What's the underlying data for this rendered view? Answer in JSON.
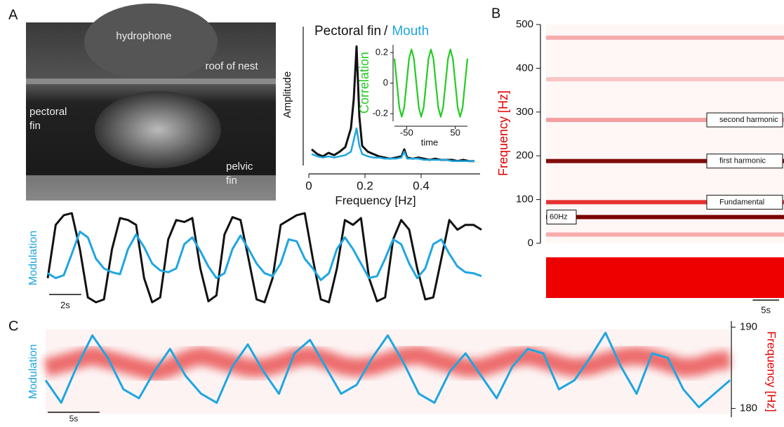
{
  "panel_labels": [
    "A",
    "B",
    "C"
  ],
  "photo": {
    "hydrophone": "hydrophone",
    "roof": "roof of nest",
    "pectoral": [
      "pectoral",
      "fin"
    ],
    "pelvic": [
      "pelvic",
      "fin"
    ]
  },
  "chart_data": [
    {
      "type": "line",
      "ylabel": "Amplitude",
      "xlabel": "Frequency [Hz]",
      "legend_separator": "/",
      "xlim": [
        0,
        0.6
      ],
      "xticks": [
        0,
        0.2,
        0.4
      ],
      "ylim": [
        0,
        1.05
      ],
      "x": [
        0.01,
        0.03,
        0.05,
        0.07,
        0.09,
        0.11,
        0.13,
        0.15,
        0.16,
        0.17,
        0.18,
        0.19,
        0.21,
        0.23,
        0.25,
        0.27,
        0.29,
        0.31,
        0.33,
        0.34,
        0.35,
        0.37,
        0.39,
        0.41,
        0.43,
        0.45,
        0.47,
        0.49,
        0.51,
        0.53,
        0.55,
        0.57,
        0.59
      ],
      "series": [
        {
          "name": "Pectoral fin",
          "color": "#111111",
          "values": [
            0.12,
            0.08,
            0.06,
            0.09,
            0.07,
            0.1,
            0.14,
            0.3,
            0.55,
            1.0,
            0.4,
            0.15,
            0.1,
            0.08,
            0.06,
            0.05,
            0.04,
            0.05,
            0.06,
            0.12,
            0.05,
            0.04,
            0.05,
            0.04,
            0.03,
            0.04,
            0.03,
            0.03,
            0.03,
            0.02,
            0.03,
            0.02,
            0.02
          ]
        },
        {
          "name": "Mouth",
          "color": "#1ea6e0",
          "values": [
            0.08,
            0.06,
            0.05,
            0.06,
            0.05,
            0.06,
            0.07,
            0.1,
            0.2,
            0.3,
            0.15,
            0.08,
            0.06,
            0.05,
            0.05,
            0.04,
            0.04,
            0.04,
            0.05,
            0.1,
            0.04,
            0.04,
            0.04,
            0.03,
            0.03,
            0.03,
            0.03,
            0.03,
            0.02,
            0.02,
            0.02,
            0.02,
            0.02
          ]
        }
      ]
    },
    {
      "type": "line",
      "ylabel": "Correlation",
      "xlabel": "time",
      "xlim": [
        -75,
        75
      ],
      "xticks": [
        -50,
        50
      ],
      "ylim": [
        -0.25,
        0.25
      ],
      "yticks": [
        -0.2,
        0,
        0.2
      ],
      "x": [
        -75,
        -70,
        -65,
        -60,
        -55,
        -50,
        -45,
        -40,
        -35,
        -30,
        -25,
        -20,
        -15,
        -10,
        -5,
        0,
        5,
        10,
        15,
        20,
        25,
        30,
        35,
        40,
        45,
        50,
        55,
        60,
        65,
        70,
        75
      ],
      "series": [
        {
          "color": "#22cc22",
          "values": [
            0.16,
            0,
            -0.16,
            -0.22,
            -0.16,
            0,
            0.16,
            0.22,
            0.16,
            0,
            -0.16,
            -0.22,
            -0.16,
            0,
            0.16,
            0.22,
            0.16,
            0,
            -0.16,
            -0.22,
            -0.16,
            0,
            0.16,
            0.22,
            0.16,
            0,
            -0.16,
            -0.22,
            -0.16,
            0,
            0.16
          ]
        }
      ]
    },
    {
      "type": "line",
      "ylabel": "Modulation",
      "scale_bar": {
        "label": "2s",
        "value": 2
      },
      "xlim": [
        0,
        27
      ],
      "ylim": [
        0,
        1
      ],
      "x": [
        0,
        0.5,
        1,
        1.5,
        2,
        2.5,
        3,
        3.5,
        4,
        4.5,
        5,
        5.5,
        6,
        6.5,
        7,
        7.5,
        8,
        8.5,
        9,
        9.5,
        10,
        10.5,
        11,
        11.5,
        12,
        12.5,
        13,
        13.5,
        14,
        14.5,
        15,
        15.5,
        16,
        16.5,
        17,
        17.5,
        18,
        18.5,
        19,
        19.5,
        20,
        20.5,
        21,
        21.5,
        22,
        22.5,
        23,
        23.5,
        24,
        24.5,
        25,
        25.5,
        26,
        26.5,
        27
      ],
      "series": [
        {
          "color": "#111111",
          "values": [
            0.3,
            0.85,
            0.95,
            0.97,
            0.6,
            0.1,
            0.05,
            0.08,
            0.6,
            0.92,
            0.9,
            0.85,
            0.3,
            0.05,
            0.1,
            0.7,
            0.9,
            0.88,
            0.92,
            0.4,
            0.06,
            0.12,
            0.75,
            0.93,
            0.9,
            0.5,
            0.08,
            0.05,
            0.3,
            0.85,
            0.9,
            0.95,
            0.97,
            0.5,
            0.08,
            0.05,
            0.4,
            0.9,
            0.85,
            0.92,
            0.3,
            0.06,
            0.1,
            0.7,
            0.9,
            0.8,
            0.4,
            0.08,
            0.1,
            0.5,
            0.9,
            0.8,
            0.85,
            0.85,
            0.8
          ]
        },
        {
          "color": "#1ea6e0",
          "values": [
            0.35,
            0.3,
            0.33,
            0.55,
            0.78,
            0.72,
            0.5,
            0.4,
            0.36,
            0.34,
            0.6,
            0.75,
            0.62,
            0.45,
            0.38,
            0.36,
            0.4,
            0.65,
            0.72,
            0.58,
            0.42,
            0.3,
            0.35,
            0.6,
            0.74,
            0.6,
            0.45,
            0.35,
            0.32,
            0.45,
            0.7,
            0.68,
            0.5,
            0.4,
            0.28,
            0.35,
            0.6,
            0.72,
            0.6,
            0.45,
            0.3,
            0.32,
            0.5,
            0.7,
            0.65,
            0.45,
            0.3,
            0.4,
            0.65,
            0.7,
            0.55,
            0.42,
            0.36,
            0.35,
            0.32
          ]
        }
      ]
    },
    {
      "type": "spectrogram",
      "ylabel": "Frequency [Hz]",
      "ylim": [
        0,
        500
      ],
      "yticks": [
        0,
        100,
        200,
        300,
        400,
        500
      ],
      "xlim": [
        0,
        45
      ],
      "scale_bar": {
        "label": "5s",
        "value": 5
      },
      "bands": [
        {
          "frequency": 470,
          "intensity": 0.3
        },
        {
          "frequency": 375,
          "intensity": 0.2
        },
        {
          "frequency": 282,
          "intensity": 0.35
        },
        {
          "frequency": 188,
          "intensity": 0.95
        },
        {
          "frequency": 94,
          "intensity": 0.8
        },
        {
          "frequency": 60,
          "intensity": 1.0
        },
        {
          "frequency": 20,
          "intensity": 0.3
        }
      ],
      "annotations": [
        {
          "text": "second harmonic",
          "frequency": 282
        },
        {
          "text": "first harmonic",
          "frequency": 188
        },
        {
          "text": "Fundamental",
          "frequency": 94
        },
        {
          "text": "60Hz",
          "frequency": 60
        }
      ]
    },
    {
      "type": "line",
      "ylabel": "Modulation",
      "y2label": "Frequency [Hz]",
      "scale_bar": {
        "label": "5s",
        "value": 5
      },
      "xlim": [
        0,
        66
      ],
      "ylim": [
        0,
        1
      ],
      "y2lim": [
        178.5,
        191
      ],
      "y2ticks": [
        180,
        190
      ],
      "x": [
        0,
        1.5,
        3,
        4.5,
        6,
        7.5,
        9,
        10.5,
        12,
        13.5,
        15,
        16.5,
        18,
        19.5,
        21,
        22.5,
        24,
        25.5,
        27,
        28.5,
        30,
        31.5,
        33,
        34.5,
        36,
        37.5,
        39,
        40.5,
        42,
        43.5,
        45,
        46.5,
        48,
        49.5,
        51,
        52.5,
        54,
        55.5,
        57,
        58.5,
        60,
        61.5,
        63,
        64.5,
        66
      ],
      "series": [
        {
          "color": "#e00000",
          "axis": "y2",
          "values": [
            185,
            185.5,
            186,
            186.5,
            186,
            185.5,
            185,
            184.5,
            185,
            186,
            186.5,
            186,
            185.5,
            185,
            185,
            185.5,
            186.2,
            186.5,
            186,
            185.3,
            185,
            185.2,
            185.8,
            186.4,
            186.6,
            186,
            185.5,
            185,
            185,
            185.6,
            186.2,
            186.5,
            186,
            185.4,
            185,
            185.2,
            185.8,
            186.3,
            186.5,
            186.2,
            185.6,
            185,
            185.2,
            185.8,
            186
          ]
        },
        {
          "color": "#1ea6e0",
          "values": [
            0.45,
            0.2,
            0.6,
            0.95,
            0.7,
            0.35,
            0.25,
            0.55,
            0.8,
            0.5,
            0.3,
            0.2,
            0.6,
            0.85,
            0.55,
            0.3,
            0.75,
            0.9,
            0.6,
            0.3,
            0.4,
            0.7,
            0.95,
            0.65,
            0.3,
            0.2,
            0.55,
            0.75,
            0.5,
            0.25,
            0.6,
            0.8,
            0.75,
            0.35,
            0.45,
            0.7,
            0.98,
            0.6,
            0.3,
            0.75,
            0.7,
            0.35,
            0.15,
            0.3,
            0.45
          ]
        }
      ]
    }
  ]
}
